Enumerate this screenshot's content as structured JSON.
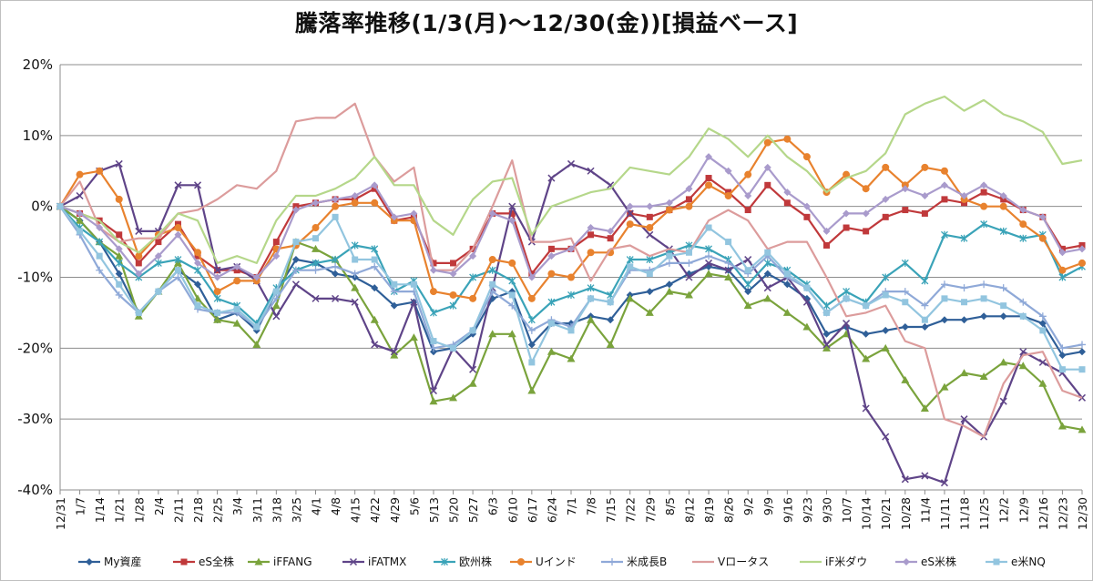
{
  "chart_data": {
    "type": "line",
    "title": "騰落率推移(1/3(月)～12/30(金))[損益ベース]",
    "xlabel": "",
    "ylabel": "",
    "ylim": [
      -40,
      20
    ],
    "yticks": [
      "20%",
      "10%",
      "0%",
      "-10%",
      "-20%",
      "-30%",
      "-40%"
    ],
    "grid": true,
    "legend_position": "bottom",
    "categories": [
      "12/31",
      "1/7",
      "1/14",
      "1/21",
      "1/28",
      "2/4",
      "2/11",
      "2/18",
      "2/25",
      "3/4",
      "3/11",
      "3/18",
      "3/25",
      "4/1",
      "4/8",
      "4/15",
      "4/22",
      "4/29",
      "5/6",
      "5/13",
      "5/20",
      "5/27",
      "6/3",
      "6/10",
      "6/17",
      "6/24",
      "7/1",
      "7/8",
      "7/15",
      "7/22",
      "7/29",
      "8/5",
      "8/12",
      "8/19",
      "8/26",
      "9/2",
      "9/9",
      "9/16",
      "9/23",
      "9/30",
      "10/7",
      "10/14",
      "10/21",
      "10/28",
      "11/4",
      "11/11",
      "11/18",
      "11/25",
      "12/2",
      "12/9",
      "12/16",
      "12/23",
      "12/30"
    ],
    "series": [
      {
        "name": "My資産",
        "color": "#2f5f98",
        "marker": "diamond",
        "values": [
          0,
          -2,
          -5,
          -9.5,
          -15,
          -12,
          -9,
          -11,
          -16,
          -15,
          -17.5,
          -12,
          -7.5,
          -8,
          -9.5,
          -10,
          -11.5,
          -14,
          -13.5,
          -20.5,
          -20,
          -18,
          -13,
          -12,
          -19.5,
          -16.5,
          -16.5,
          -15.5,
          -16,
          -12.5,
          -12,
          -11,
          -9.5,
          -8.5,
          -9,
          -12,
          -9.5,
          -11,
          -13,
          -18,
          -17,
          -18,
          -17.5,
          -17,
          -17,
          -16,
          -16,
          -15.5,
          -15.5,
          -15.5,
          -16.5,
          -21,
          -20.5
        ]
      },
      {
        "name": "eS全株",
        "color": "#c0393b",
        "marker": "square",
        "values": [
          0,
          -1,
          -2,
          -4,
          -8,
          -5,
          -2.5,
          -7,
          -9,
          -9,
          -10,
          -5,
          0,
          0.5,
          1,
          1,
          2.5,
          -2,
          -1.5,
          -8,
          -8,
          -6,
          -1,
          -1,
          -9.5,
          -6,
          -6,
          -4,
          -4.5,
          -1,
          -1.5,
          -0.5,
          1,
          4,
          2,
          -0.5,
          3,
          0.5,
          -1.5,
          -5.5,
          -3,
          -3.5,
          -1.5,
          -0.5,
          -1,
          1,
          0.5,
          2,
          1,
          -0.5,
          -1.5,
          -6,
          -5.5
        ]
      },
      {
        "name": "iFFANG",
        "color": "#7aa33c",
        "marker": "triangle",
        "values": [
          0,
          -2,
          -5,
          -7,
          -15.5,
          -12,
          -8,
          -13,
          -16,
          -16.5,
          -19.5,
          -14,
          -5,
          -6,
          -7.5,
          -11.5,
          -16,
          -21,
          -18.5,
          -27.5,
          -27,
          -25,
          -18,
          -18,
          -26,
          -20.5,
          -21.5,
          -16,
          -19.5,
          -13,
          -15,
          -12,
          -12.5,
          -9.5,
          -10,
          -14,
          -13,
          -15,
          -17,
          -20,
          -18,
          -21.5,
          -20,
          -24.5,
          -28.5,
          -25.5,
          -23.5,
          -24,
          -22,
          -22.5,
          -25,
          -31,
          -31.5
        ]
      },
      {
        "name": "iFATMX",
        "color": "#5f4488",
        "marker": "x",
        "values": [
          0,
          1.5,
          5,
          6,
          -3.5,
          -3.5,
          3,
          3,
          -9,
          -8.5,
          -10.5,
          -15.5,
          -11,
          -13,
          -13,
          -13.5,
          -19.5,
          -20.5,
          -13.5,
          -26,
          -20,
          -23,
          -11.5,
          0,
          -5,
          4,
          6,
          5,
          3,
          -1,
          -4,
          -6,
          -10,
          -8,
          -9,
          -7.5,
          -11.5,
          -10,
          -13.5,
          -19.5,
          -16.5,
          -28.5,
          -32.5,
          -38.5,
          -38,
          -39,
          -30,
          -32.5,
          -27.5,
          -20.5,
          -22,
          -23.5,
          -27
        ]
      },
      {
        "name": "欧州株",
        "color": "#3aa3b8",
        "marker": "asterisk",
        "values": [
          0,
          -3,
          -5,
          -8,
          -10,
          -8,
          -7.5,
          -9,
          -13,
          -14,
          -16.5,
          -11.5,
          -9,
          -8,
          -7.5,
          -5.5,
          -6,
          -12,
          -10.5,
          -15,
          -14,
          -10,
          -9,
          -10.5,
          -16,
          -13.5,
          -12.5,
          -11.5,
          -12.5,
          -7.5,
          -7.5,
          -6.5,
          -5.5,
          -6,
          -7.5,
          -11,
          -8,
          -9,
          -11,
          -14,
          -12,
          -13.5,
          -10,
          -8,
          -10.5,
          -4,
          -4.5,
          -2.5,
          -3.5,
          -4.5,
          -4,
          -10,
          -8.5
        ]
      },
      {
        "name": "Uインド",
        "color": "#e8822e",
        "marker": "circle",
        "values": [
          0,
          4.5,
          5,
          1,
          -7,
          -4,
          -3,
          -6.5,
          -12,
          -10.5,
          -10.5,
          -6,
          -5.5,
          -3,
          0,
          0.5,
          0.5,
          -2,
          -2,
          -12,
          -12.5,
          -13,
          -7.5,
          -8,
          -13,
          -9.5,
          -10,
          -6.5,
          -6.5,
          -2.5,
          -3,
          -0.5,
          0,
          3,
          1.5,
          4.5,
          9,
          9.5,
          7,
          2,
          4.5,
          2.5,
          5.5,
          3,
          5.5,
          5,
          1,
          0,
          0,
          -2.5,
          -4.5,
          -9,
          -8
        ]
      },
      {
        "name": "米成長B",
        "color": "#8fa9d8",
        "marker": "plus",
        "values": [
          0,
          -4,
          -9,
          -12.5,
          -15,
          -12,
          -10,
          -14.5,
          -15,
          -15,
          -17,
          -13,
          -9,
          -9,
          -8.5,
          -9.5,
          -8.5,
          -12,
          -12,
          -20,
          -19.5,
          -17.5,
          -12,
          -14,
          -17.5,
          -16,
          -17,
          -13,
          -13.5,
          -9,
          -9,
          -8,
          -8,
          -7,
          -8,
          -9.5,
          -7,
          -10,
          -11.5,
          -15,
          -13,
          -14,
          -12,
          -12,
          -14,
          -11,
          -11.5,
          -11,
          -11.5,
          -13.5,
          -15.5,
          -20,
          -19.5
        ]
      },
      {
        "name": "Vロータス",
        "color": "#dc9c9c",
        "marker": "none",
        "values": [
          0,
          3.5,
          -3,
          -5,
          -4.5,
          -4.5,
          -1,
          -0.5,
          1,
          3,
          2.5,
          5,
          12,
          12.5,
          12.5,
          14.5,
          7,
          3.5,
          5.5,
          -9,
          -9,
          -6,
          0,
          6.5,
          -5,
          -5,
          -4.5,
          -10.5,
          -6,
          -5.5,
          -7,
          -6,
          -6.5,
          -2,
          -0.5,
          -2,
          -6,
          -5,
          -5,
          -10,
          -15.5,
          -15,
          -14,
          -19,
          -20,
          -30,
          -31,
          -32.5,
          -25,
          -21,
          -20.5,
          -26,
          -27
        ]
      },
      {
        "name": "iF米ダウ",
        "color": "#b5d78a",
        "marker": "none",
        "values": [
          0,
          -1,
          -2,
          -5,
          -6.5,
          -4,
          -1,
          -2,
          -8,
          -7,
          -8,
          -2,
          1.5,
          1.5,
          2.5,
          4,
          7,
          3,
          3,
          -2,
          -4,
          1,
          3.5,
          4,
          -4,
          0,
          1,
          2,
          2.5,
          5.5,
          5,
          4.5,
          7,
          11,
          9.5,
          7,
          10,
          7,
          5,
          2,
          4,
          5,
          7.5,
          13,
          14.5,
          15.5,
          13.5,
          15,
          13,
          12,
          10.5,
          6,
          6.5
        ]
      },
      {
        "name": "eS米株",
        "color": "#a99bcc",
        "marker": "diamond",
        "values": [
          0,
          -1,
          -3,
          -6,
          -9.5,
          -7,
          -4,
          -8,
          -10,
          -8.5,
          -10,
          -7,
          -0.5,
          0.5,
          1,
          1.5,
          3,
          -1.5,
          -1,
          -9,
          -9.5,
          -7,
          -1,
          -2,
          -10,
          -7,
          -6,
          -3,
          -3.5,
          0,
          0,
          0.5,
          2.5,
          7,
          5,
          1.5,
          5.5,
          2,
          0,
          -3.5,
          -1,
          -1,
          1,
          2.5,
          1.5,
          3,
          1.5,
          3,
          1.5,
          -0.5,
          -1.5,
          -6.5,
          -6
        ]
      },
      {
        "name": "e米NQ",
        "color": "#92c5df",
        "marker": "square",
        "values": [
          0,
          -3.5,
          -7,
          -11,
          -15,
          -12,
          -9,
          -14,
          -15,
          -14.5,
          -17,
          -12,
          -5,
          -4.5,
          -1.5,
          -7.5,
          -7.5,
          -11,
          -11,
          -19,
          -20,
          -17.5,
          -11,
          -12.5,
          -22,
          -16.5,
          -17.5,
          -13,
          -13.5,
          -8.5,
          -9.5,
          -7,
          -6.5,
          -3,
          -5,
          -9,
          -6.5,
          -9.5,
          -11.5,
          -15,
          -13,
          -14,
          -12.5,
          -13.5,
          -16,
          -13,
          -13.5,
          -13,
          -14,
          -15.5,
          -17.5,
          -23,
          -23
        ]
      }
    ]
  }
}
